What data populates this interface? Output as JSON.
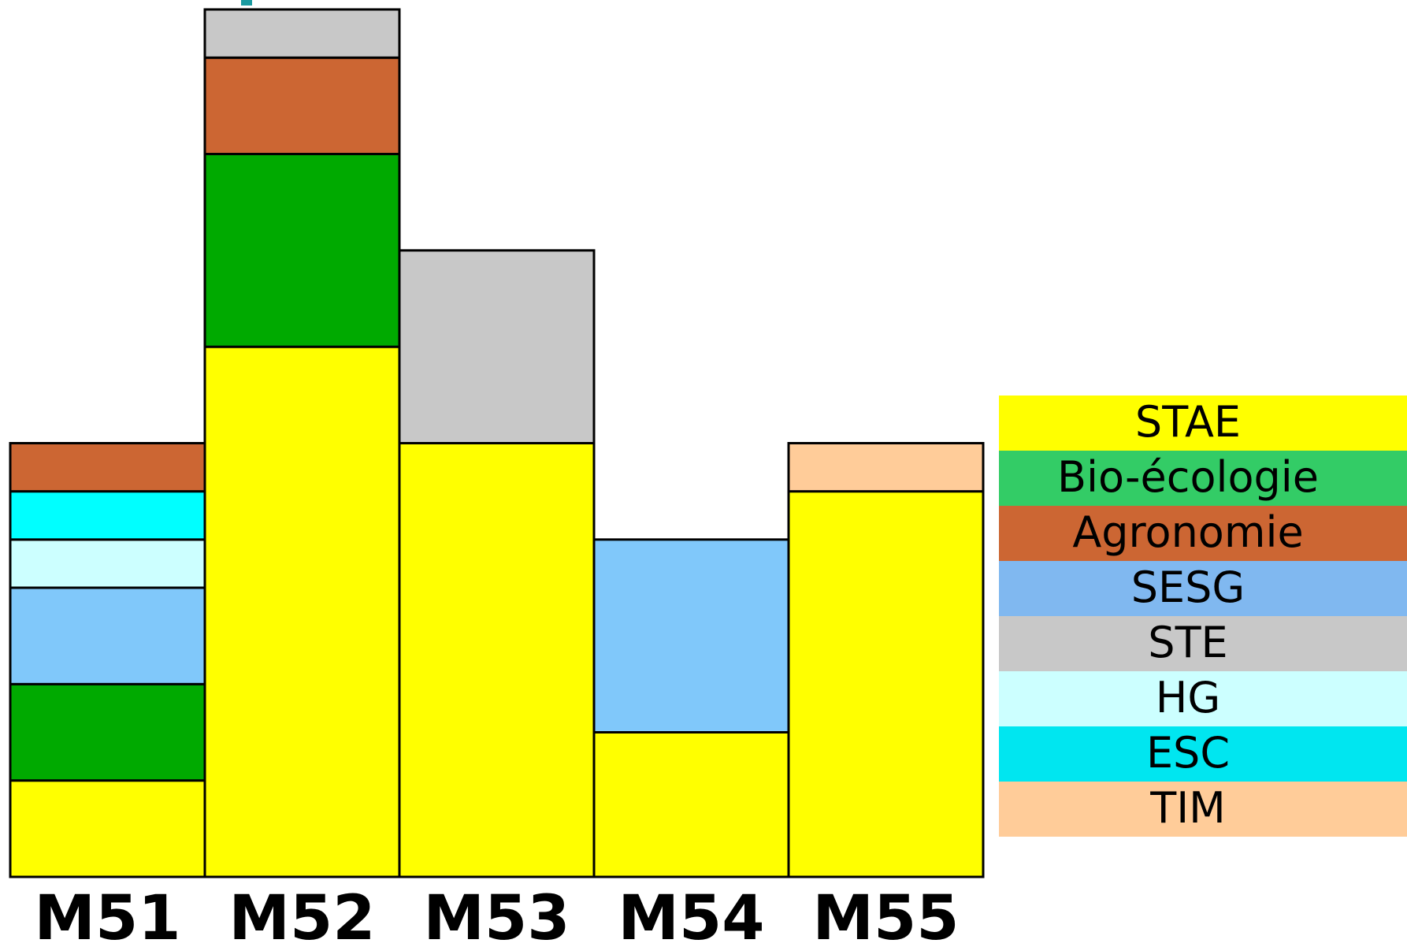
{
  "chart_data": {
    "type": "bar",
    "stacked": true,
    "categories": [
      "M51",
      "M52",
      "M53",
      "M54",
      "M55"
    ],
    "ylim": [
      0,
      9
    ],
    "grid": false,
    "legend_position": "right",
    "series": [
      {
        "name": "STAE",
        "color": "#ffff00",
        "values": [
          1,
          5.5,
          4.5,
          1.5,
          4
        ]
      },
      {
        "name": "Bio-écologie",
        "color": "#00aa00",
        "values": [
          1,
          2,
          0,
          0,
          0
        ]
      },
      {
        "name": "Agronomie",
        "color": "#cc6633",
        "values": [
          0.5,
          1,
          0,
          0,
          0
        ]
      },
      {
        "name": "SESG",
        "color": "#80c8fa",
        "values": [
          1,
          0,
          0,
          2,
          0
        ]
      },
      {
        "name": "STE",
        "color": "#c8c8c8",
        "values": [
          0,
          0.5,
          2,
          0,
          0
        ]
      },
      {
        "name": "HG",
        "color": "#ccffff",
        "values": [
          0.5,
          0,
          0,
          0,
          0
        ]
      },
      {
        "name": "ESC",
        "color": "#00ffff",
        "values": [
          0.5,
          0,
          0,
          0,
          0
        ]
      },
      {
        "name": "TIM",
        "color": "#ffcc99",
        "values": [
          0,
          0,
          0,
          0,
          0.5
        ]
      }
    ],
    "stack_order": {
      "M51": [
        "STAE",
        "Bio-écologie",
        "SESG",
        "HG",
        "ESC",
        "Agronomie"
      ],
      "M52": [
        "STAE",
        "Bio-écologie",
        "Agronomie",
        "STE"
      ],
      "M53": [
        "STAE",
        "STE"
      ],
      "M54": [
        "STAE",
        "SESG"
      ],
      "M55": [
        "STAE",
        "TIM"
      ]
    },
    "legend": [
      {
        "label": "STAE",
        "color": "#ffff00"
      },
      {
        "label": "Bio-écologie",
        "color": "#33cc66"
      },
      {
        "label": "Agronomie",
        "color": "#cc6633"
      },
      {
        "label": "SESG",
        "color": "#80b8f0"
      },
      {
        "label": "STE",
        "color": "#c8c8c8"
      },
      {
        "label": "HG",
        "color": "#ccffff"
      },
      {
        "label": "ESC",
        "color": "#00e6f0"
      },
      {
        "label": "TIM",
        "color": "#ffcc99"
      }
    ]
  }
}
